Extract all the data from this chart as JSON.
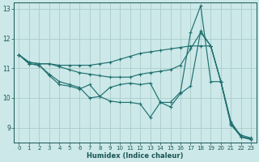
{
  "xlabel": "Humidex (Indice chaleur)",
  "bg_color": "#cce8e8",
  "grid_color": "#aacccc",
  "line_color": "#217070",
  "xlim": [
    -0.5,
    23.5
  ],
  "ylim": [
    8.5,
    13.2
  ],
  "yticks": [
    9,
    10,
    11,
    12,
    13
  ],
  "xticks": [
    0,
    1,
    2,
    3,
    4,
    5,
    6,
    7,
    8,
    9,
    10,
    11,
    12,
    13,
    14,
    15,
    16,
    17,
    18,
    19,
    20,
    21,
    22,
    23
  ],
  "lines": [
    {
      "x": [
        0,
        1,
        2,
        3,
        4,
        5,
        6,
        7,
        8,
        9,
        10,
        11,
        12,
        13,
        14,
        15,
        16,
        17,
        18,
        19,
        20,
        21,
        22,
        23
      ],
      "y": [
        11.45,
        11.2,
        11.15,
        11.15,
        11.1,
        11.1,
        11.1,
        11.1,
        11.15,
        11.2,
        11.3,
        11.4,
        11.5,
        11.55,
        11.6,
        11.65,
        11.7,
        11.75,
        11.75,
        11.75,
        10.55,
        9.1,
        8.75,
        8.65
      ]
    },
    {
      "x": [
        0,
        1,
        2,
        3,
        4,
        5,
        6,
        7,
        8,
        9,
        10,
        11,
        12,
        13,
        14,
        15,
        16,
        17,
        18,
        19,
        20,
        21,
        22,
        23
      ],
      "y": [
        11.45,
        11.2,
        11.15,
        11.15,
        11.05,
        10.95,
        10.85,
        10.8,
        10.75,
        10.7,
        10.7,
        10.7,
        10.8,
        10.85,
        10.9,
        10.95,
        11.1,
        11.65,
        12.2,
        11.75,
        10.55,
        9.1,
        8.7,
        8.62
      ]
    },
    {
      "x": [
        0,
        1,
        2,
        3,
        4,
        5,
        6,
        7,
        8,
        9,
        10,
        11,
        12,
        13,
        14,
        15,
        16,
        17,
        18,
        19,
        20,
        21,
        22,
        23
      ],
      "y": [
        11.45,
        11.15,
        11.1,
        10.8,
        10.55,
        10.45,
        10.35,
        10.0,
        10.05,
        10.35,
        10.45,
        10.5,
        10.45,
        10.5,
        9.85,
        9.85,
        10.2,
        12.2,
        13.1,
        10.55,
        10.55,
        9.2,
        8.7,
        8.62
      ]
    },
    {
      "x": [
        0,
        1,
        2,
        3,
        4,
        5,
        6,
        7,
        8,
        9,
        10,
        11,
        12,
        13,
        14,
        15,
        16,
        17,
        18,
        19,
        20,
        21,
        22,
        23
      ],
      "y": [
        11.45,
        11.15,
        11.1,
        10.75,
        10.45,
        10.4,
        10.3,
        10.45,
        10.05,
        9.9,
        9.85,
        9.85,
        9.8,
        9.35,
        9.85,
        9.7,
        10.15,
        10.4,
        12.25,
        11.75,
        10.55,
        9.15,
        8.68,
        8.6
      ]
    }
  ]
}
